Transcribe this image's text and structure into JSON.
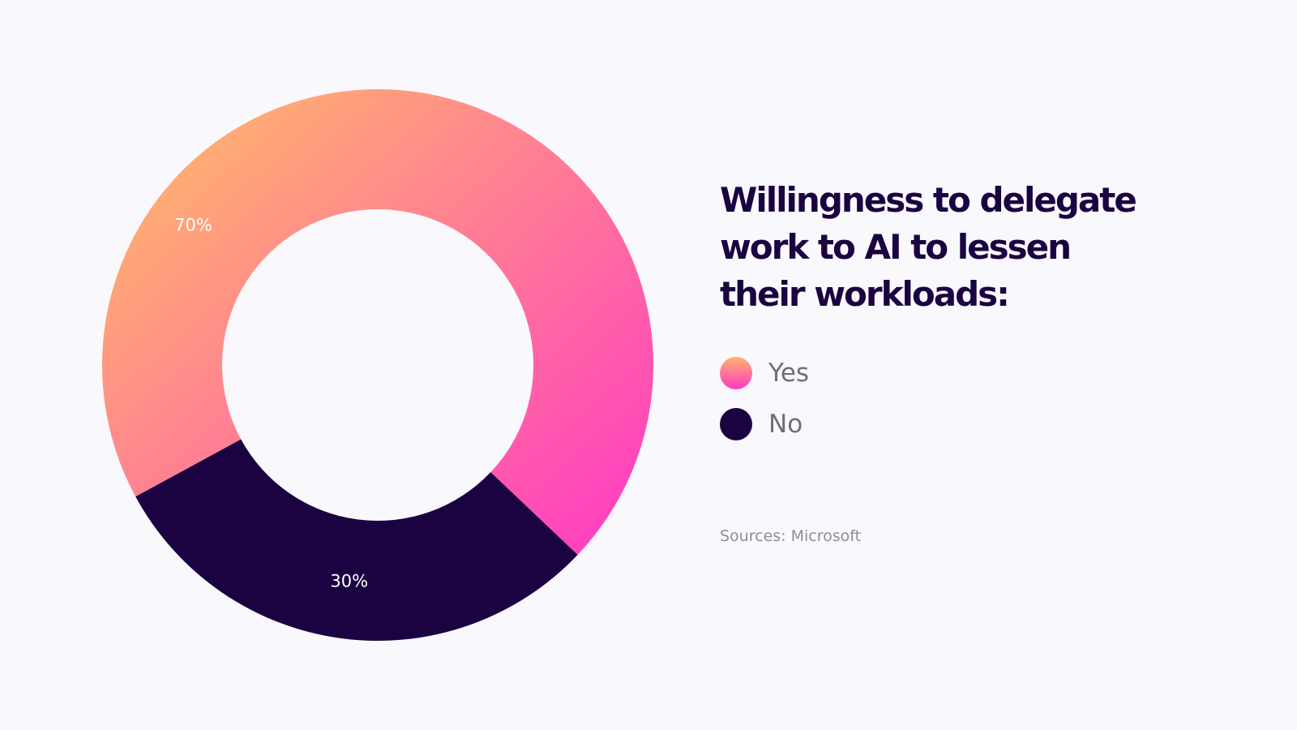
{
  "chart_data": {
    "type": "pie",
    "donut": true,
    "title": "Willingness to delegate work to AI to lessen their workloads:",
    "categories": [
      "Yes",
      "No"
    ],
    "values": [
      70,
      30
    ],
    "value_labels": [
      "70%",
      "30%"
    ],
    "colors": {
      "Yes": {
        "gradient_start": "#ffb36e",
        "gradient_end": "#ff3ac4"
      },
      "No": "#1a0340"
    },
    "legend": [
      {
        "label": "Yes",
        "color": "#ff7aa0"
      },
      {
        "label": "No",
        "color": "#1a0340"
      }
    ],
    "legend_placement": "right",
    "source": "Sources: Microsoft"
  }
}
